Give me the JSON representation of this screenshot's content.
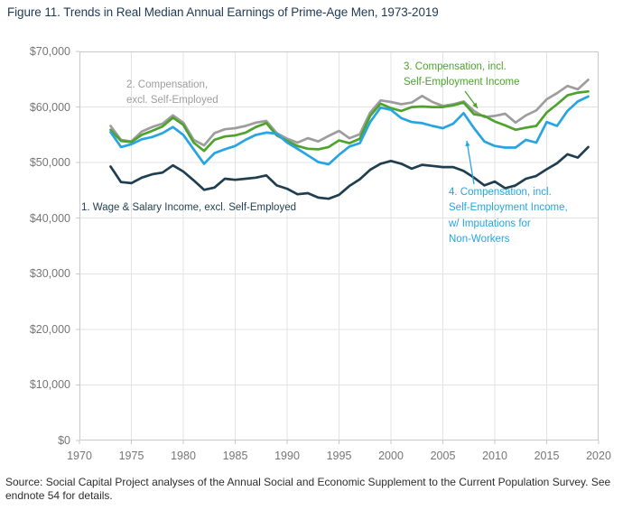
{
  "figure": {
    "title": "Figure 11. Trends in Real Median Annual Earnings of Prime-Age Men, 1973-2019"
  },
  "annotations": {
    "series1_label": "1. Wage & Salary Income, excl. Self-Employed",
    "series2_label": "2. Compensation,\nexcl. Self-Employed",
    "series3_label": "3. Compensation, incl.\nSelf-Employment Income",
    "series4_label": "4. Compensation, incl.\nSelf-Employment Income,\nw/ Imputations for\nNon-Workers"
  },
  "source_note": "Source: Social Capital Project analyses of the Annual Social and Economic Supplement to the Current Population Survey. See endnote 54 for details.",
  "colors": {
    "navy": "#1f3e4f",
    "gray": "#9d9d9d",
    "green": "#4ea32d",
    "blue": "#27a5e2",
    "title_text": "#1f3a55",
    "axis_text": "#767676",
    "gridline": "#e3e3e3",
    "axis_border": "#c9c9c9",
    "source_text": "#2d2d2d"
  },
  "chart_data": {
    "type": "line",
    "title": "Figure 11. Trends in Real Median Annual Earnings of Prime-Age Men, 1973-2019",
    "xlabel": "",
    "ylabel": "",
    "grid": true,
    "x_axis": {
      "min": 1970,
      "max": 2020,
      "tick_values": [
        1970,
        1975,
        1980,
        1985,
        1990,
        1995,
        2000,
        2005,
        2010,
        2015,
        2020
      ],
      "tick_labels": [
        "1970",
        "1975",
        "1980",
        "1985",
        "1990",
        "1995",
        "2000",
        "2005",
        "2010",
        "2015",
        "2020"
      ]
    },
    "y_axis": {
      "min": 0,
      "max": 70000,
      "tick_values": [
        0,
        10000,
        20000,
        30000,
        40000,
        50000,
        60000,
        70000
      ],
      "tick_labels": [
        "$0",
        "$10,000",
        "$20,000",
        "$30,000",
        "$40,000",
        "$50,000",
        "$60,000",
        "$70,000"
      ]
    },
    "x": [
      1973,
      1974,
      1975,
      1976,
      1977,
      1978,
      1979,
      1980,
      1981,
      1982,
      1983,
      1984,
      1985,
      1986,
      1987,
      1988,
      1989,
      1990,
      1991,
      1992,
      1993,
      1994,
      1995,
      1996,
      1997,
      1998,
      1999,
      2000,
      2001,
      2002,
      2003,
      2004,
      2005,
      2006,
      2007,
      2008,
      2009,
      2010,
      2011,
      2012,
      2013,
      2014,
      2015,
      2016,
      2017,
      2018,
      2019
    ],
    "series": [
      {
        "name": "2. Compensation, excl. Self-Employed",
        "color": "#9d9d9d",
        "values": [
          56600,
          54100,
          53800,
          55600,
          56400,
          57000,
          58500,
          57200,
          54100,
          53100,
          55300,
          56000,
          56200,
          56600,
          57200,
          57500,
          55300,
          54300,
          53600,
          54400,
          53800,
          54800,
          55700,
          54400,
          55100,
          59000,
          61200,
          60900,
          60500,
          60800,
          62000,
          60900,
          60200,
          60500,
          61000,
          59300,
          58200,
          58400,
          58800,
          57200,
          58500,
          59400,
          61400,
          62500,
          63800,
          63200,
          64900
        ]
      },
      {
        "name": "3. Compensation, incl. Self-Employment Income",
        "color": "#4ea32d",
        "values": [
          55900,
          53900,
          53700,
          55000,
          55700,
          56500,
          58100,
          56800,
          53600,
          52100,
          54100,
          54700,
          54900,
          55400,
          56400,
          57100,
          54900,
          53900,
          53000,
          52500,
          52400,
          52800,
          54000,
          53500,
          54300,
          58400,
          60600,
          59800,
          59300,
          60000,
          60100,
          60000,
          60000,
          60300,
          60800,
          58700,
          58400,
          57400,
          56700,
          55900,
          56300,
          56600,
          59000,
          60500,
          62100,
          62600,
          62800
        ]
      },
      {
        "name": "4. Compensation, incl. Self-Employment Income, w/ Imputations for Non-Workers",
        "color": "#27a5e2",
        "values": [
          55500,
          52800,
          53300,
          54200,
          54600,
          55300,
          56400,
          55000,
          52400,
          49800,
          51700,
          52400,
          53000,
          54100,
          55000,
          55400,
          55200,
          53600,
          52500,
          51300,
          50100,
          49700,
          51400,
          52900,
          53500,
          57300,
          59900,
          59500,
          58000,
          57300,
          57100,
          56600,
          56200,
          57000,
          58900,
          56200,
          53800,
          53000,
          52700,
          52700,
          54100,
          53600,
          57300,
          56600,
          59300,
          61000,
          61900
        ]
      },
      {
        "name": "1. Wage & Salary Income, excl. Self-Employed",
        "color": "#1f3e4f",
        "values": [
          49300,
          46500,
          46300,
          47300,
          47900,
          48200,
          49500,
          48400,
          46800,
          45100,
          45500,
          47100,
          46900,
          47100,
          47300,
          47700,
          45900,
          45300,
          44300,
          44500,
          43700,
          43500,
          44200,
          45800,
          47000,
          48700,
          49800,
          50300,
          49800,
          48900,
          49600,
          49400,
          49200,
          49200,
          48500,
          47300,
          45900,
          46600,
          45400,
          45900,
          47100,
          47600,
          48800,
          49900,
          51500,
          50900,
          52800
        ]
      }
    ],
    "legend_position": "annotated-on-plot"
  }
}
